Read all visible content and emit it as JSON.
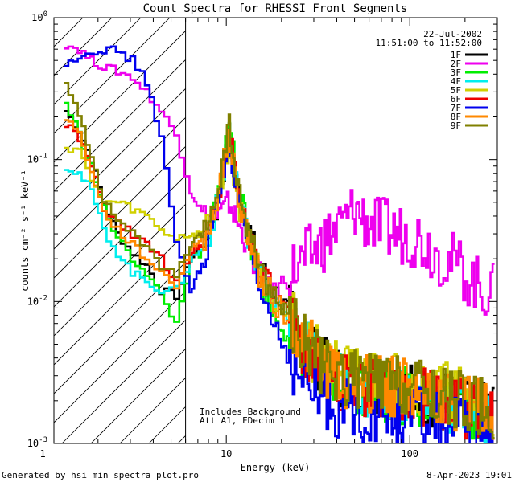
{
  "chart_data": {
    "type": "line",
    "title": "Count Spectra for RHESSI Front Segments",
    "xlabel": "Energy (keV)",
    "ylabel": "counts cm⁻² s⁻¹ keV⁻¹",
    "xscale": "log",
    "yscale": "log",
    "xlim": [
      1.15,
      300
    ],
    "ylim": [
      0.001,
      1
    ],
    "x_tick_labels": [
      {
        "value": 1,
        "label": "1"
      },
      {
        "value": 10,
        "label": "10"
      },
      {
        "value": 100,
        "label": "100"
      }
    ],
    "y_tick_labels": [
      {
        "value": 1,
        "base": "10",
        "exp": "0"
      },
      {
        "value": 0.1,
        "base": "10",
        "exp": "-1"
      },
      {
        "value": 0.01,
        "base": "10",
        "exp": "-2"
      },
      {
        "value": 0.001,
        "base": "10",
        "exp": "-3"
      }
    ],
    "hatch_region": {
      "x_max": 6
    },
    "legend": {
      "placement": "top-right",
      "date": "22-Jul-2002",
      "time_range": "11:51:00 to 11:52:00"
    },
    "annotation_lines": [
      "Includes Background",
      "Att A1, FDecim 1"
    ],
    "series": [
      {
        "name": "1F",
        "color": "#000000",
        "x": [
          1.3,
          1.55,
          1.8,
          2.1,
          2.5,
          3.0,
          3.6,
          4.3,
          5.2,
          6.3,
          7.5,
          9.0,
          10.3,
          11.5,
          13,
          15,
          18,
          22,
          27,
          33,
          40,
          50,
          60,
          75,
          90,
          110,
          140,
          180,
          230,
          290
        ],
        "y": [
          0.22,
          0.16,
          0.1,
          0.05,
          0.03,
          0.022,
          0.018,
          0.012,
          0.011,
          0.02,
          0.025,
          0.05,
          0.15,
          0.06,
          0.035,
          0.018,
          0.012,
          0.008,
          0.005,
          0.0035,
          0.003,
          0.0028,
          0.0026,
          0.0025,
          0.0024,
          0.0022,
          0.0021,
          0.0019,
          0.0017,
          0.0015
        ]
      },
      {
        "name": "2F",
        "color": "#ee00ee",
        "x": [
          1.3,
          1.55,
          1.8,
          2.1,
          2.5,
          3.0,
          3.6,
          4.3,
          5.2,
          6.3,
          7.5,
          9.0,
          10.3,
          11.5,
          13,
          15,
          18,
          22,
          27,
          33,
          40,
          50,
          60,
          75,
          90,
          110,
          140,
          180,
          230,
          290
        ],
        "y": [
          0.65,
          0.6,
          0.5,
          0.45,
          0.42,
          0.38,
          0.3,
          0.22,
          0.15,
          0.06,
          0.04,
          0.04,
          0.05,
          0.035,
          0.025,
          0.015,
          0.011,
          0.016,
          0.02,
          0.026,
          0.032,
          0.045,
          0.035,
          0.032,
          0.03,
          0.028,
          0.022,
          0.018,
          0.013,
          0.011
        ]
      },
      {
        "name": "3F",
        "color": "#00ee00",
        "x": [
          1.3,
          1.55,
          1.8,
          2.1,
          2.5,
          3.0,
          3.6,
          4.3,
          5.2,
          6.3,
          7.5,
          9.0,
          10.3,
          11.5,
          13,
          15,
          18,
          22,
          27,
          33,
          40,
          50,
          60,
          75,
          90,
          110,
          140,
          180,
          230,
          290
        ],
        "y": [
          0.25,
          0.15,
          0.09,
          0.045,
          0.028,
          0.02,
          0.016,
          0.011,
          0.007,
          0.02,
          0.022,
          0.06,
          0.19,
          0.07,
          0.03,
          0.015,
          0.008,
          0.006,
          0.004,
          0.003,
          0.0027,
          0.0026,
          0.0025,
          0.0023,
          0.0022,
          0.0021,
          0.002,
          0.0018,
          0.0016,
          0.0014
        ]
      },
      {
        "name": "4F",
        "color": "#00eeee",
        "x": [
          1.3,
          1.55,
          1.8,
          2.1,
          2.5,
          3.0,
          3.6,
          4.3,
          5.2,
          6.3,
          7.5,
          9.0,
          10.3,
          11.5,
          13,
          15,
          18,
          22,
          27,
          33,
          40,
          50,
          60,
          75,
          90,
          110,
          140,
          180,
          230,
          290
        ],
        "y": [
          0.09,
          0.08,
          0.06,
          0.032,
          0.022,
          0.016,
          0.014,
          0.012,
          0.012,
          0.02,
          0.024,
          0.05,
          0.14,
          0.06,
          0.03,
          0.016,
          0.01,
          0.007,
          0.0045,
          0.0032,
          0.0028,
          0.0026,
          0.0025,
          0.0024,
          0.0023,
          0.0022,
          0.002,
          0.0018,
          0.0016,
          0.0014
        ]
      },
      {
        "name": "5F",
        "color": "#d0d000",
        "x": [
          1.3,
          1.55,
          1.8,
          2.1,
          2.5,
          3.0,
          3.6,
          4.3,
          5.2,
          6.3,
          7.5,
          9.0,
          10.3,
          11.5,
          13,
          15,
          18,
          22,
          27,
          33,
          40,
          50,
          60,
          75,
          90,
          110,
          140,
          180,
          230,
          290
        ],
        "y": [
          0.12,
          0.12,
          0.07,
          0.05,
          0.05,
          0.045,
          0.04,
          0.032,
          0.028,
          0.03,
          0.03,
          0.06,
          0.13,
          0.05,
          0.03,
          0.017,
          0.011,
          0.008,
          0.005,
          0.0038,
          0.0033,
          0.003,
          0.0029,
          0.0028,
          0.0027,
          0.0026,
          0.0024,
          0.0022,
          0.002,
          0.0018
        ]
      },
      {
        "name": "6F",
        "color": "#ee0000",
        "x": [
          1.3,
          1.55,
          1.8,
          2.1,
          2.5,
          3.0,
          3.6,
          4.3,
          5.2,
          6.3,
          7.5,
          9.0,
          10.3,
          11.5,
          13,
          15,
          18,
          22,
          27,
          33,
          40,
          50,
          60,
          75,
          90,
          110,
          140,
          180,
          230,
          290
        ],
        "y": [
          0.18,
          0.14,
          0.09,
          0.045,
          0.035,
          0.03,
          0.025,
          0.02,
          0.014,
          0.022,
          0.026,
          0.055,
          0.16,
          0.06,
          0.032,
          0.017,
          0.011,
          0.007,
          0.0045,
          0.0033,
          0.0028,
          0.0026,
          0.0025,
          0.0024,
          0.0023,
          0.0022,
          0.002,
          0.0018,
          0.0016,
          0.0015
        ]
      },
      {
        "name": "7F",
        "color": "#0000ee",
        "x": [
          1.3,
          1.55,
          1.8,
          2.1,
          2.5,
          3.0,
          3.6,
          4.3,
          5.2,
          6.3,
          7.5,
          9.0,
          10.3,
          11.5,
          13,
          15,
          18,
          22,
          27,
          33,
          40,
          50,
          60,
          75,
          90,
          110,
          140,
          180,
          230,
          290
        ],
        "y": [
          0.45,
          0.55,
          0.57,
          0.6,
          0.58,
          0.5,
          0.35,
          0.15,
          0.025,
          0.012,
          0.02,
          0.05,
          0.14,
          0.05,
          0.025,
          0.012,
          0.007,
          0.004,
          0.0025,
          0.002,
          0.0018,
          0.0017,
          0.0016,
          0.0016,
          0.0015,
          0.0015,
          0.0014,
          0.0013,
          0.0012,
          0.0011
        ]
      },
      {
        "name": "8F",
        "color": "#ff8800",
        "x": [
          1.3,
          1.55,
          1.8,
          2.1,
          2.5,
          3.0,
          3.6,
          4.3,
          5.2,
          6.3,
          7.5,
          9.0,
          10.3,
          11.5,
          13,
          15,
          18,
          22,
          27,
          33,
          40,
          50,
          60,
          75,
          90,
          110,
          140,
          180,
          230,
          290
        ],
        "y": [
          0.2,
          0.15,
          0.085,
          0.042,
          0.032,
          0.025,
          0.02,
          0.016,
          0.013,
          0.024,
          0.028,
          0.06,
          0.15,
          0.055,
          0.03,
          0.016,
          0.01,
          0.0075,
          0.005,
          0.0036,
          0.003,
          0.0028,
          0.0027,
          0.0026,
          0.0025,
          0.0024,
          0.0022,
          0.002,
          0.0018,
          0.0016
        ]
      },
      {
        "name": "9F",
        "color": "#808000",
        "x": [
          1.3,
          1.55,
          1.8,
          2.1,
          2.5,
          3.0,
          3.6,
          4.3,
          5.2,
          6.3,
          7.5,
          9.0,
          10.3,
          11.5,
          13,
          15,
          18,
          22,
          27,
          33,
          40,
          50,
          60,
          75,
          90,
          110,
          140,
          180,
          230,
          290
        ],
        "y": [
          0.34,
          0.2,
          0.11,
          0.05,
          0.038,
          0.03,
          0.024,
          0.018,
          0.015,
          0.025,
          0.03,
          0.065,
          0.17,
          0.06,
          0.033,
          0.018,
          0.011,
          0.0075,
          0.005,
          0.0035,
          0.003,
          0.0028,
          0.0027,
          0.0026,
          0.0025,
          0.0024,
          0.0022,
          0.002,
          0.0018,
          0.0016
        ]
      }
    ]
  },
  "footer": {
    "left": "Generated by hsi_min_spectra_plot.pro",
    "right": "8-Apr-2023 19:01"
  }
}
